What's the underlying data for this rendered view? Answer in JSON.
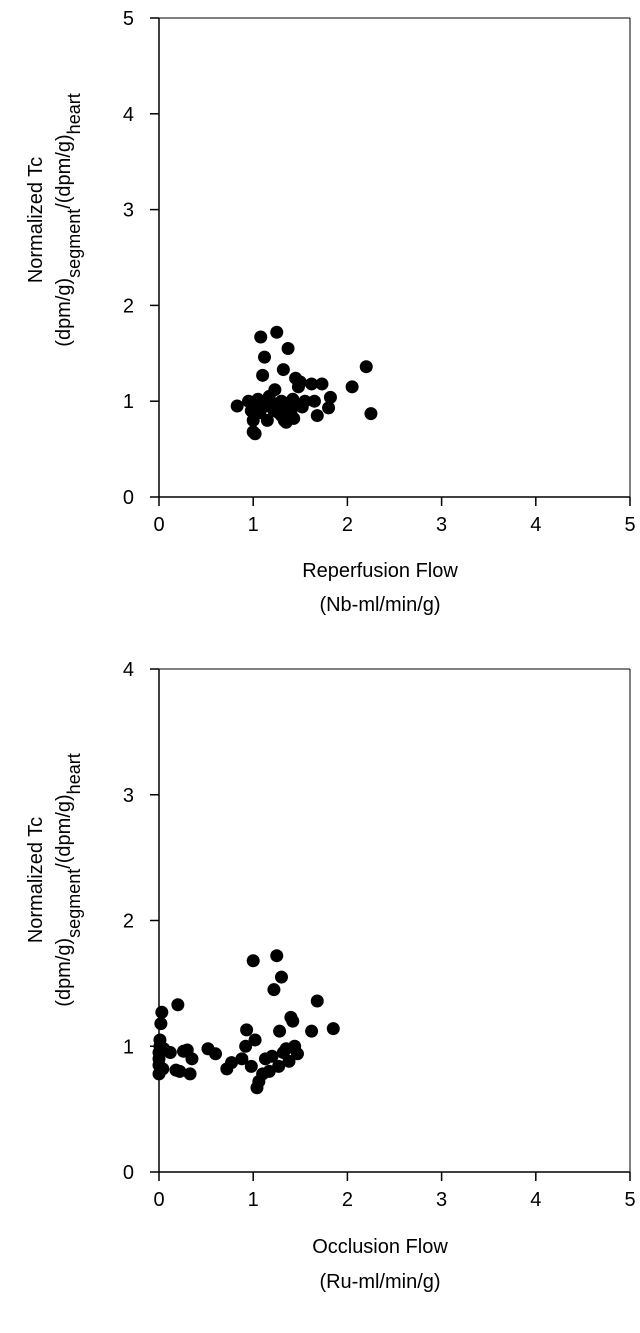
{
  "chart_data": [
    {
      "type": "scatter",
      "xlabel": "Reperfusion Flow",
      "xlabel_unit": "(Nb-ml/min/g)",
      "ylabel": {
        "line1": "Normalized Tc",
        "line2_parts": [
          {
            "text": "(dpm/g)",
            "sub": false
          },
          {
            "text": "segment",
            "sub": true
          },
          {
            "text": "/(dpm/g)",
            "sub": false
          },
          {
            "text": "heart",
            "sub": true
          }
        ]
      },
      "xlim": [
        0,
        5
      ],
      "ylim": [
        0,
        5
      ],
      "xticks": [
        "0",
        "1",
        "2",
        "3",
        "4",
        "5"
      ],
      "yticks": [
        "0",
        "1",
        "2",
        "3",
        "4",
        "5"
      ],
      "grid": false,
      "legend": "none",
      "marker_color": "#000000",
      "points": [
        [
          0.83,
          0.95
        ],
        [
          0.95,
          1.0
        ],
        [
          0.98,
          0.9
        ],
        [
          1.0,
          0.68
        ],
        [
          1.02,
          0.66
        ],
        [
          1.0,
          0.8
        ],
        [
          1.03,
          0.93
        ],
        [
          1.05,
          1.02
        ],
        [
          1.07,
          0.88
        ],
        [
          1.08,
          1.67
        ],
        [
          1.1,
          1.27
        ],
        [
          1.12,
          1.46
        ],
        [
          1.13,
          0.95
        ],
        [
          1.15,
          0.8
        ],
        [
          1.17,
          1.05
        ],
        [
          1.2,
          0.98
        ],
        [
          1.22,
          0.9
        ],
        [
          1.23,
          1.12
        ],
        [
          1.25,
          1.72
        ],
        [
          1.27,
          0.88
        ],
        [
          1.28,
          0.94
        ],
        [
          1.3,
          1.0
        ],
        [
          1.3,
          0.85
        ],
        [
          1.32,
          1.33
        ],
        [
          1.33,
          0.8
        ],
        [
          1.35,
          0.78
        ],
        [
          1.37,
          1.55
        ],
        [
          1.38,
          0.95
        ],
        [
          1.4,
          0.88
        ],
        [
          1.42,
          1.02
        ],
        [
          1.43,
          0.82
        ],
        [
          1.45,
          1.24
        ],
        [
          1.47,
          0.96
        ],
        [
          1.48,
          1.15
        ],
        [
          1.5,
          1.2
        ],
        [
          1.52,
          0.94
        ],
        [
          1.55,
          1.0
        ],
        [
          1.62,
          1.18
        ],
        [
          1.65,
          1.0
        ],
        [
          1.68,
          0.85
        ],
        [
          1.73,
          1.18
        ],
        [
          1.8,
          0.93
        ],
        [
          1.82,
          1.04
        ],
        [
          2.05,
          1.15
        ],
        [
          2.2,
          1.36
        ],
        [
          2.25,
          0.87
        ]
      ]
    },
    {
      "type": "scatter",
      "xlabel": "Occlusion Flow",
      "xlabel_unit": "(Ru-ml/min/g)",
      "ylabel": {
        "line1": "Normalized Tc",
        "line2_parts": [
          {
            "text": "(dpm/g)",
            "sub": false
          },
          {
            "text": "segment",
            "sub": true
          },
          {
            "text": "/(dpm/g)",
            "sub": false
          },
          {
            "text": "heart",
            "sub": true
          }
        ]
      },
      "xlim": [
        0,
        5
      ],
      "ylim": [
        0,
        4
      ],
      "xticks": [
        "0",
        "1",
        "2",
        "3",
        "4",
        "5"
      ],
      "yticks": [
        "0",
        "1",
        "2",
        "3",
        "4"
      ],
      "grid": false,
      "legend": "none",
      "marker_color": "#000000",
      "points": [
        [
          0.0,
          0.78
        ],
        [
          0.0,
          0.85
        ],
        [
          0.0,
          0.9
        ],
        [
          0.0,
          0.95
        ],
        [
          0.01,
          1.0
        ],
        [
          0.01,
          1.05
        ],
        [
          0.02,
          1.18
        ],
        [
          0.03,
          1.27
        ],
        [
          0.04,
          0.82
        ],
        [
          0.05,
          0.98
        ],
        [
          0.12,
          0.95
        ],
        [
          0.18,
          0.81
        ],
        [
          0.2,
          1.33
        ],
        [
          0.22,
          0.8
        ],
        [
          0.26,
          0.96
        ],
        [
          0.3,
          0.97
        ],
        [
          0.33,
          0.78
        ],
        [
          0.35,
          0.9
        ],
        [
          0.52,
          0.98
        ],
        [
          0.6,
          0.94
        ],
        [
          0.72,
          0.82
        ],
        [
          0.77,
          0.87
        ],
        [
          0.88,
          0.9
        ],
        [
          0.92,
          1.0
        ],
        [
          0.93,
          1.13
        ],
        [
          0.98,
          0.84
        ],
        [
          1.0,
          1.68
        ],
        [
          1.02,
          1.05
        ],
        [
          1.04,
          0.67
        ],
        [
          1.06,
          0.72
        ],
        [
          1.1,
          0.78
        ],
        [
          1.13,
          0.9
        ],
        [
          1.17,
          0.8
        ],
        [
          1.2,
          0.92
        ],
        [
          1.22,
          1.45
        ],
        [
          1.25,
          1.72
        ],
        [
          1.27,
          0.84
        ],
        [
          1.28,
          1.12
        ],
        [
          1.3,
          1.55
        ],
        [
          1.32,
          0.95
        ],
        [
          1.35,
          0.98
        ],
        [
          1.38,
          0.88
        ],
        [
          1.4,
          1.23
        ],
        [
          1.42,
          1.2
        ],
        [
          1.44,
          1.0
        ],
        [
          1.47,
          0.94
        ],
        [
          1.62,
          1.12
        ],
        [
          1.68,
          1.36
        ],
        [
          1.85,
          1.14
        ]
      ]
    }
  ]
}
